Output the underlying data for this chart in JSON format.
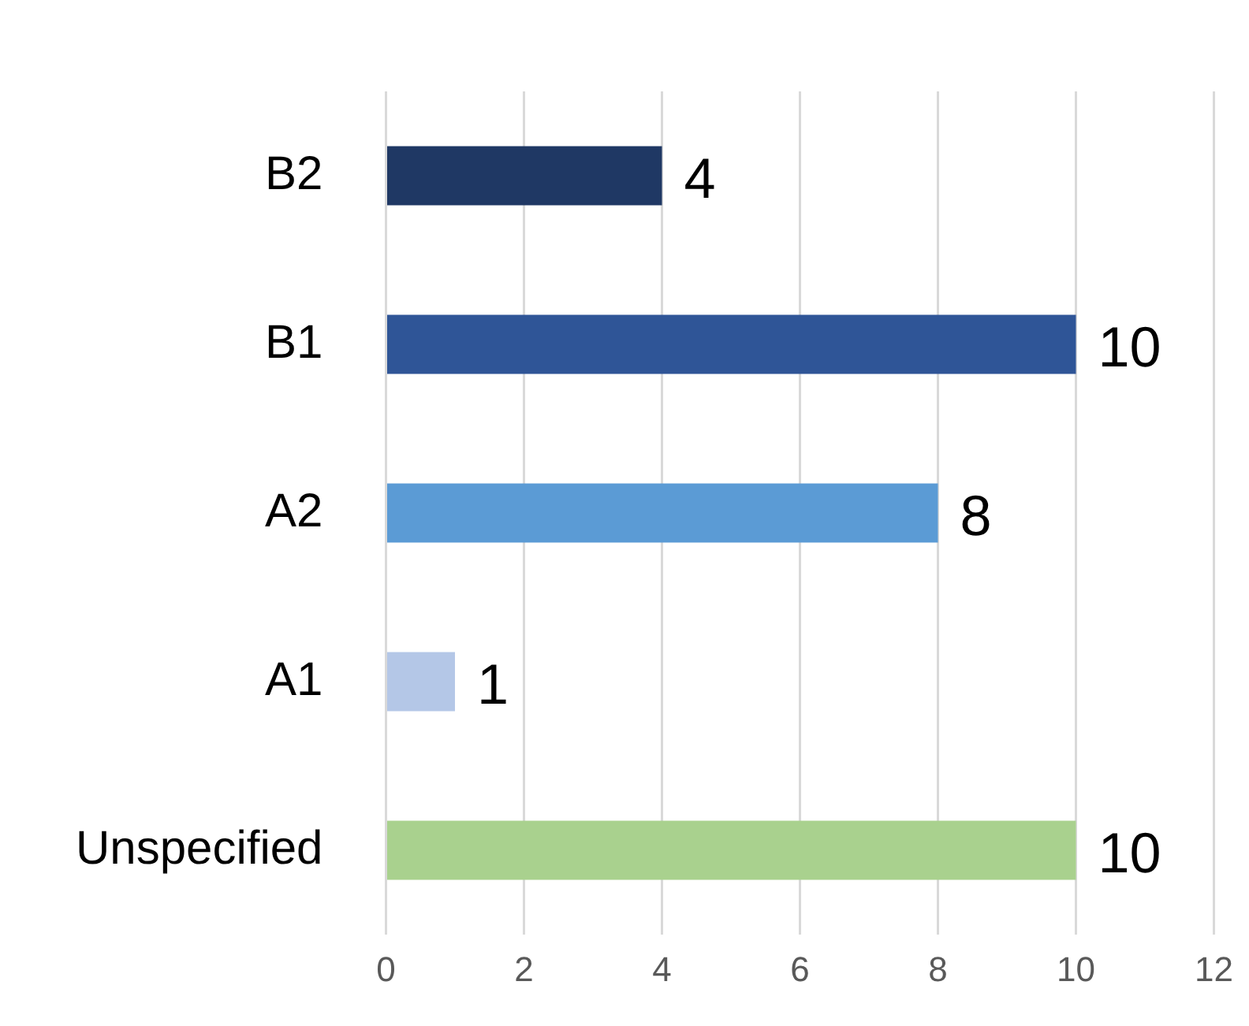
{
  "chart_data": {
    "type": "bar",
    "orientation": "horizontal",
    "categories": [
      "B2",
      "B1",
      "A2",
      "A1",
      "Unspecified"
    ],
    "values": [
      4,
      10,
      8,
      1,
      10
    ],
    "colors": [
      "#1f3864",
      "#2f5597",
      "#5b9bd5",
      "#b4c7e7",
      "#a9d18e"
    ],
    "xlim": [
      0,
      12
    ],
    "xticks": [
      0,
      2,
      4,
      6,
      8,
      10,
      12
    ],
    "grid": "x",
    "legend": false,
    "data_labels": true
  }
}
